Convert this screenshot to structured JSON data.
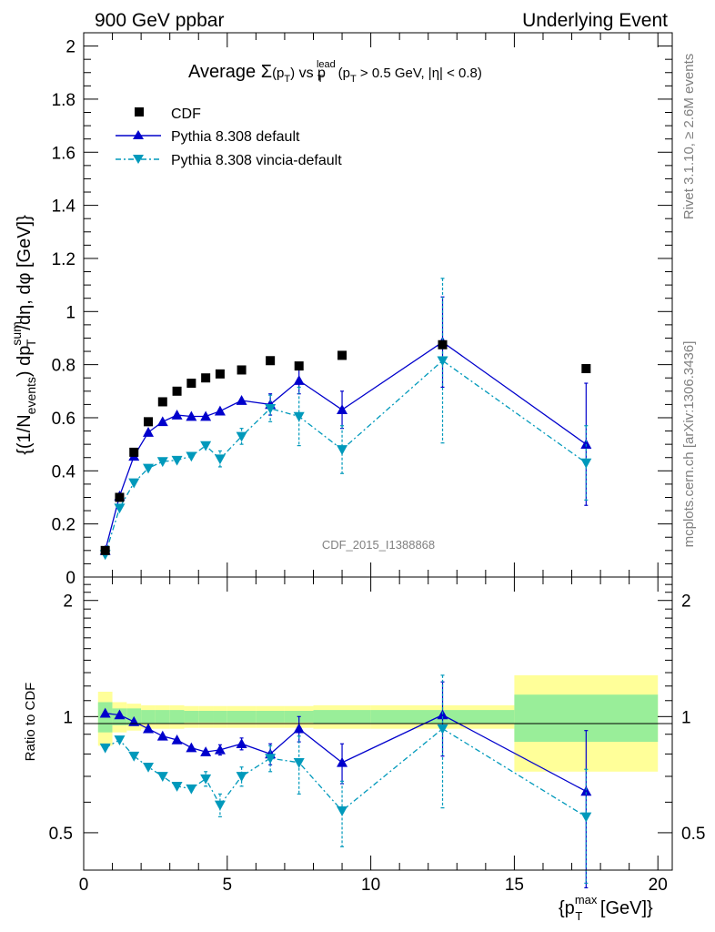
{
  "header": {
    "left": "900 GeV ppbar",
    "right": "Underlying Event"
  },
  "title": {
    "prefix": "Average ",
    "sigma": "Σ",
    "sigma_arg": "(p",
    "sigma_arg_sub": "T",
    "sigma_arg_close": ")",
    "vs": " vs p",
    "vs_sup": "lead",
    "vs_sub": "T",
    "cut_open": " (p",
    "cut_sub": "T",
    "cut_rest": " > 0.5 GeV, |η| < 0.8)"
  },
  "ylabel_main": {
    "p1": "{(1/N",
    "sub1": "events",
    "p2": ") dp",
    "sup2": "sum",
    "sub2": "T",
    "p3": "/dη, dφ [GeV]}"
  },
  "ylabel_ratio": "Ratio to CDF",
  "xlabel": {
    "p1": "{p",
    "sup": "max",
    "sub": "T",
    "p2": " [GeV]}"
  },
  "analysis_id": "CDF_2015_I1388868",
  "side_text": {
    "rivet": "Rivet 3.1.10, ≥ 2.6M events",
    "mcplots": "mcplots.cern.ch [arXiv:1306.3436]"
  },
  "legend": {
    "cdf": "CDF",
    "pythia_default": "Pythia 8.308 default",
    "pythia_vincia": "Pythia 8.308 vincia-default"
  },
  "colors": {
    "cdf": "#000000",
    "pythia_default": "#0000cc",
    "pythia_vincia": "#0099bb",
    "band_inner": "#99ee99",
    "band_outer": "#ffff99"
  },
  "axes": {
    "main_y_ticks": [
      "0",
      "0.2",
      "0.4",
      "0.6",
      "0.8",
      "1",
      "1.2",
      "1.4",
      "1.6",
      "1.8",
      "2"
    ],
    "ratio_y_ticks_left": [
      "0.5",
      "1",
      "2"
    ],
    "ratio_y_ticks_right": [
      "0.5",
      "1",
      "2"
    ],
    "x_ticks": [
      "0",
      "5",
      "10",
      "15",
      "20"
    ]
  },
  "chart_data": {
    "type": "scatter",
    "xlim": [
      0,
      20.5
    ],
    "ylim": [
      0,
      2.05
    ],
    "ratio_ylim": [
      0.4,
      2.3
    ],
    "ratio_scale": "log",
    "grid": false,
    "legend_position": "top-left",
    "x": [
      0.75,
      1.25,
      1.75,
      2.25,
      2.75,
      3.25,
      3.75,
      4.25,
      4.75,
      5.5,
      6.5,
      7.5,
      9.0,
      12.5,
      17.5
    ],
    "series": [
      {
        "name": "CDF",
        "values": [
          0.1,
          0.3,
          0.47,
          0.585,
          0.66,
          0.7,
          0.73,
          0.75,
          0.765,
          0.78,
          0.815,
          0.795,
          0.835,
          0.875,
          0.785
        ],
        "band_inner_rel": [
          0.09,
          0.05,
          0.05,
          0.04,
          0.04,
          0.04,
          0.035,
          0.035,
          0.035,
          0.035,
          0.035,
          0.035,
          0.04,
          0.04,
          0.14
        ],
        "band_outer_rel": [
          0.16,
          0.09,
          0.08,
          0.07,
          0.07,
          0.07,
          0.065,
          0.065,
          0.065,
          0.065,
          0.065,
          0.065,
          0.07,
          0.07,
          0.28
        ]
      },
      {
        "name": "Pythia 8.308 default",
        "values": [
          0.1,
          0.305,
          0.455,
          0.545,
          0.585,
          0.61,
          0.605,
          0.605,
          0.625,
          0.665,
          0.65,
          0.74,
          0.63,
          0.885,
          0.5
        ],
        "errors": [
          0.005,
          0.005,
          0.008,
          0.01,
          0.012,
          0.012,
          0.01,
          0.015,
          0.02,
          0.02,
          0.04,
          0.05,
          0.07,
          0.17,
          0.23
        ],
        "ratio": [
          1.02,
          1.01,
          0.97,
          0.93,
          0.89,
          0.87,
          0.83,
          0.81,
          0.82,
          0.85,
          0.8,
          0.93,
          0.76,
          1.01,
          0.64
        ],
        "ratio_errors": [
          0.01,
          0.01,
          0.015,
          0.015,
          0.015,
          0.02,
          0.015,
          0.02,
          0.025,
          0.03,
          0.05,
          0.07,
          0.09,
          0.22,
          0.28
        ]
      },
      {
        "name": "Pythia 8.308 vincia-default",
        "values": [
          0.085,
          0.26,
          0.355,
          0.41,
          0.435,
          0.44,
          0.455,
          0.495,
          0.445,
          0.53,
          0.635,
          0.605,
          0.48,
          0.815,
          0.43
        ],
        "errors": [
          0.005,
          0.005,
          0.008,
          0.01,
          0.012,
          0.012,
          0.012,
          0.02,
          0.03,
          0.03,
          0.05,
          0.11,
          0.09,
          0.31,
          0.14
        ],
        "ratio": [
          0.83,
          0.87,
          0.79,
          0.74,
          0.7,
          0.66,
          0.65,
          0.69,
          0.59,
          0.7,
          0.78,
          0.76,
          0.57,
          0.93,
          0.55
        ],
        "ratio_errors": [
          0.01,
          0.01,
          0.015,
          0.015,
          0.02,
          0.02,
          0.02,
          0.03,
          0.04,
          0.04,
          0.06,
          0.13,
          0.11,
          0.35,
          0.18
        ]
      }
    ],
    "ratio_band_edges": [
      0.5,
      1.0,
      1.5,
      2.0,
      2.5,
      3.0,
      3.5,
      4.0,
      4.5,
      5.0,
      6.0,
      7.0,
      8.0,
      10.0,
      15.0,
      20.0
    ]
  }
}
